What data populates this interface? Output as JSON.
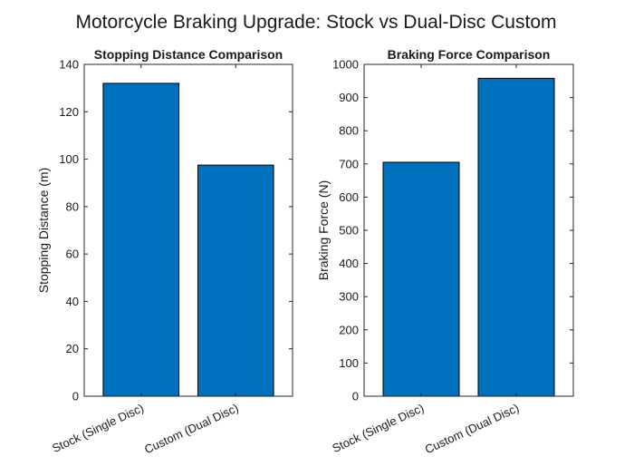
{
  "figure": {
    "title": "Motorcycle Braking Upgrade: Stock vs Dual-Disc Custom"
  },
  "chart_data": [
    {
      "type": "bar",
      "title": "Stopping Distance Comparison",
      "xlabel": "",
      "ylabel": "Stopping Distance (m)",
      "categories": [
        "Stock (Single Disc)",
        "Custom (Dual Disc)"
      ],
      "values": [
        132,
        97.5
      ],
      "ylim": [
        0,
        140
      ],
      "yticks": [
        0,
        20,
        40,
        60,
        80,
        100,
        120,
        140
      ],
      "bar_color": "#0072BD",
      "grid": false
    },
    {
      "type": "bar",
      "title": "Braking Force Comparison",
      "xlabel": "",
      "ylabel": "Braking Force (N)",
      "categories": [
        "Stock (Single Disc)",
        "Custom (Dual Disc)"
      ],
      "values": [
        705,
        958
      ],
      "ylim": [
        0,
        1000
      ],
      "yticks": [
        0,
        100,
        200,
        300,
        400,
        500,
        600,
        700,
        800,
        900,
        1000
      ],
      "bar_color": "#0072BD",
      "grid": false
    }
  ]
}
